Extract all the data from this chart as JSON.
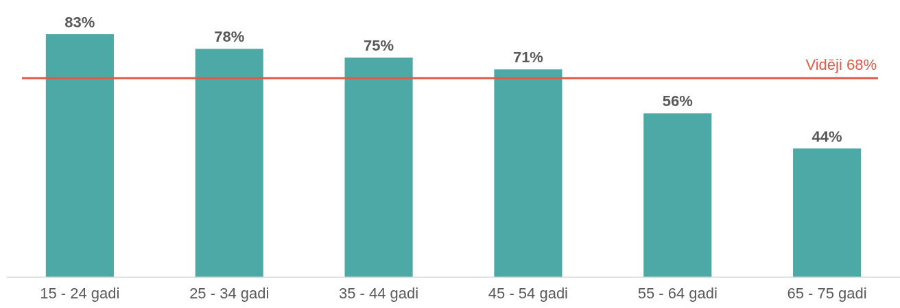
{
  "chart_data": {
    "type": "bar",
    "categories": [
      "15 - 24 gadi",
      "25 - 34 gadi",
      "35 - 44 gadi",
      "45 - 54 gadi",
      "55 - 64 gadi",
      "65 - 75 gadi"
    ],
    "values": [
      83,
      78,
      75,
      71,
      56,
      44
    ],
    "value_labels": [
      "83%",
      "78%",
      "75%",
      "71%",
      "56%",
      "44%"
    ],
    "color": "#4ca9a5",
    "ref_lines": [
      {
        "axis": "y",
        "value": 68,
        "label": "Vidēji 68%",
        "color": "#e05a47"
      }
    ]
  }
}
